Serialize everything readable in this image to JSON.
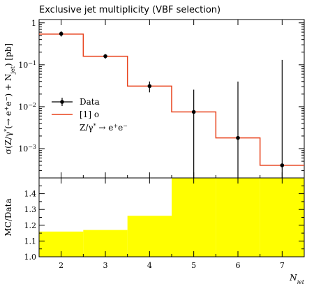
{
  "chart_data": [
    {
      "type": "line",
      "title": "Exclusive jet multiplicity (VBF selection)",
      "ylabel": "σ(Z/γ* (→ e⁺e⁻) + N_jet) [pb]",
      "ylabel_parts": [
        "σ(Z/γ",
        "*",
        "(→ e",
        "+",
        "e",
        "−",
        ") + N",
        "jet",
        ") [pb]"
      ],
      "yscale": "log",
      "ylim": [
        0.0002,
        1.2
      ],
      "xlim": [
        1.5,
        7.5
      ],
      "y_ticks": [
        {
          "value": 1,
          "label": "1",
          "exp": ""
        },
        {
          "value": 0.1,
          "label": "10",
          "exp": "−1"
        },
        {
          "value": 0.01,
          "label": "10",
          "exp": "−2"
        },
        {
          "value": 0.001,
          "label": "10",
          "exp": "−3"
        }
      ],
      "series": [
        {
          "name": "Data",
          "x": [
            2,
            3,
            4,
            5,
            6,
            7
          ],
          "y": [
            0.55,
            0.16,
            0.031,
            0.0075,
            0.0018,
            0.0004
          ],
          "yerr_low": [
            0.08,
            0.02,
            0.009,
            0.0075,
            0.0018,
            0.0004
          ],
          "yerr_high": [
            0.08,
            0.02,
            0.009,
            0.018,
            0.038,
            0.13
          ],
          "color": "#000000"
        },
        {
          "name": "[1] o",
          "bin_edges": [
            1.5,
            2.5,
            3.5,
            4.5,
            5.5,
            6.5,
            7.5
          ],
          "values": [
            0.54,
            0.16,
            0.031,
            0.0075,
            0.0018,
            0.0004
          ],
          "color": "#e8421c"
        }
      ],
      "legend": {
        "placement": "middle-left",
        "entries": [
          "Data",
          "[1] o"
        ],
        "subtitle_parts": [
          "Z/γ",
          "*",
          " → e",
          "+",
          "e",
          "−"
        ]
      }
    },
    {
      "type": "bar",
      "ylabel": "MC/Data",
      "xlabel": "N_jet",
      "xlabel_parts": [
        "N",
        "jet"
      ],
      "ylim": [
        1.0,
        1.5
      ],
      "xlim": [
        1.5,
        7.5
      ],
      "x_ticks": [
        "2",
        "3",
        "4",
        "5",
        "6",
        "7"
      ],
      "y_ticks": [
        "1.0",
        "1.1",
        "1.2",
        "1.3",
        "1.4"
      ],
      "bin_edges": [
        1.5,
        2.5,
        3.5,
        4.5,
        5.5,
        6.5,
        7.5
      ],
      "band_high": [
        1.16,
        1.17,
        1.26,
        1.5,
        1.5,
        1.5
      ],
      "band_low": [
        1.0,
        1.0,
        1.0,
        1.0,
        1.0,
        1.0
      ],
      "band_color": "#ffff00"
    }
  ]
}
